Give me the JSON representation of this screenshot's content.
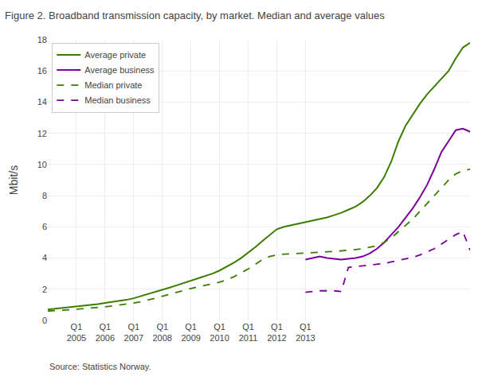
{
  "chart_data": {
    "type": "line",
    "title": "Figure 2. Broadband transmission capacity, by market. Median and average values",
    "ylabel": "Mbit/s",
    "annotations": [
      "Source: Statistics Norway."
    ],
    "categories": [
      null,
      null,
      null,
      null,
      "Q1\n2005",
      null,
      null,
      null,
      "Q1\n2006",
      null,
      null,
      null,
      "Q1\n2007",
      null,
      null,
      null,
      "Q1\n2008",
      null,
      null,
      null,
      "Q1\n2009",
      null,
      null,
      null,
      "Q1\n2010",
      null,
      null,
      null,
      "Q1\n2011",
      null,
      null,
      null,
      "Q1\n2012",
      null,
      null,
      null,
      "Q1\n2013",
      null,
      null,
      null,
      null,
      null,
      null,
      null,
      null,
      null,
      null,
      null,
      null,
      null,
      null,
      null,
      null,
      null,
      null,
      null,
      null,
      null,
      null,
      null
    ],
    "series": [
      {
        "name": "Average private",
        "color": "#3a7d00",
        "line_style": "solid",
        "values": [
          0.7,
          0.75,
          0.78,
          0.82,
          0.87,
          0.92,
          0.97,
          1.05,
          1.12,
          1.18,
          1.25,
          1.32,
          1.42,
          1.55,
          1.68,
          1.82,
          1.95,
          2.1,
          2.25,
          2.4,
          2.55,
          2.7,
          2.85,
          3.0,
          3.2,
          3.45,
          3.7,
          4.0,
          4.35,
          4.7,
          5.1,
          5.5,
          5.85,
          6.0,
          6.1,
          6.2,
          6.3,
          6.4,
          6.5,
          6.6,
          6.75,
          6.9,
          7.1,
          7.3,
          7.6,
          8.0,
          8.5,
          9.2,
          10.2,
          11.5,
          12.5,
          13.2,
          13.9,
          14.5,
          15.0,
          15.5,
          16.0,
          16.8,
          17.5,
          17.8
        ]
      },
      {
        "name": "Average business",
        "color": "#7b0099",
        "line_style": "solid",
        "values": [
          null,
          null,
          null,
          null,
          null,
          null,
          null,
          null,
          null,
          null,
          null,
          null,
          null,
          null,
          null,
          null,
          null,
          null,
          null,
          null,
          null,
          null,
          null,
          null,
          null,
          null,
          null,
          null,
          null,
          null,
          null,
          null,
          null,
          null,
          null,
          null,
          3.9,
          4.0,
          4.1,
          4.0,
          3.95,
          3.9,
          3.95,
          4.0,
          4.1,
          4.3,
          4.6,
          5.0,
          5.5,
          6.0,
          6.6,
          7.2,
          7.9,
          8.7,
          9.7,
          10.8,
          11.5,
          12.2,
          12.3,
          12.1
        ]
      },
      {
        "name": "Median private",
        "color": "#3a7d00",
        "line_style": "dashed",
        "values": [
          0.6,
          0.62,
          0.65,
          0.68,
          0.72,
          0.75,
          0.78,
          0.82,
          0.87,
          0.92,
          0.98,
          1.05,
          1.12,
          1.2,
          1.3,
          1.42,
          1.55,
          1.68,
          1.82,
          1.95,
          2.05,
          2.15,
          2.25,
          2.35,
          2.45,
          2.6,
          2.8,
          3.05,
          3.3,
          3.6,
          3.9,
          4.1,
          4.2,
          4.25,
          4.28,
          4.3,
          4.32,
          4.35,
          4.38,
          4.4,
          4.42,
          4.45,
          4.5,
          4.55,
          4.6,
          4.7,
          4.8,
          5.0,
          5.3,
          5.7,
          6.1,
          6.5,
          7.0,
          7.5,
          8.0,
          8.5,
          9.0,
          9.4,
          9.6,
          9.7
        ]
      },
      {
        "name": "Median business",
        "color": "#7b0099",
        "line_style": "dashed",
        "values": [
          null,
          null,
          null,
          null,
          null,
          null,
          null,
          null,
          null,
          null,
          null,
          null,
          null,
          null,
          null,
          null,
          null,
          null,
          null,
          null,
          null,
          null,
          null,
          null,
          null,
          null,
          null,
          null,
          null,
          null,
          null,
          null,
          null,
          null,
          null,
          null,
          1.8,
          1.85,
          1.9,
          1.9,
          1.9,
          1.85,
          3.4,
          3.45,
          3.5,
          3.55,
          3.6,
          3.65,
          3.75,
          3.85,
          3.95,
          4.05,
          4.2,
          4.4,
          4.6,
          4.9,
          5.2,
          5.5,
          5.7,
          4.5
        ]
      }
    ],
    "ylim": [
      0,
      18
    ],
    "yticks": [
      0,
      2,
      4,
      6,
      8,
      10,
      12,
      14,
      16,
      18
    ],
    "grid": true,
    "legend": "upper left"
  }
}
